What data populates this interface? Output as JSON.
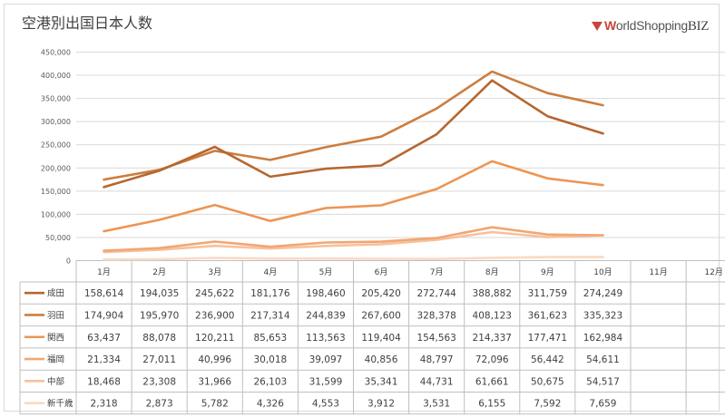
{
  "title": "空港別出国日本人数",
  "logo": {
    "w": "W",
    "mid": "orldShopping",
    "biz": "BIZ"
  },
  "chart_data": {
    "type": "line",
    "title": "空港別出国日本人数",
    "categories": [
      "1月",
      "2月",
      "3月",
      "4月",
      "5月",
      "6月",
      "7月",
      "8月",
      "9月",
      "10月",
      "11月",
      "12月"
    ],
    "ylim": [
      0,
      450000
    ],
    "yticks": [
      "0",
      "50,000",
      "100,000",
      "150,000",
      "200,000",
      "250,000",
      "300,000",
      "350,000",
      "400,000",
      "450,000"
    ],
    "grid": true,
    "legend": "data-table",
    "series": [
      {
        "name": "成田",
        "color": "#b5672f",
        "values": [
          158614,
          194035,
          245622,
          181176,
          198460,
          205420,
          272744,
          388882,
          311759,
          274249,
          null,
          null
        ],
        "labels": [
          "158,614",
          "194,035",
          "245,622",
          "181,176",
          "198,460",
          "205,420",
          "272,744",
          "388,882",
          "311,759",
          "274,249",
          "",
          ""
        ]
      },
      {
        "name": "羽田",
        "color": "#cc7d3f",
        "values": [
          174904,
          195970,
          236900,
          217314,
          244839,
          267600,
          328378,
          408123,
          361623,
          335323,
          null,
          null
        ],
        "labels": [
          "174,904",
          "195,970",
          "236,900",
          "217,314",
          "244,839",
          "267,600",
          "328,378",
          "408,123",
          "361,623",
          "335,323",
          "",
          ""
        ]
      },
      {
        "name": "関西",
        "color": "#ec9554",
        "values": [
          63437,
          88078,
          120211,
          85653,
          113563,
          119404,
          154563,
          214337,
          177471,
          162984,
          null,
          null
        ],
        "labels": [
          "63,437",
          "88,078",
          "120,211",
          "85,653",
          "113,563",
          "119,404",
          "154,563",
          "214,337",
          "177,471",
          "162,984",
          "",
          ""
        ]
      },
      {
        "name": "福岡",
        "color": "#f2a672",
        "values": [
          21334,
          27011,
          40996,
          30018,
          39097,
          40856,
          48797,
          72096,
          56442,
          54611,
          null,
          null
        ],
        "labels": [
          "21,334",
          "27,011",
          "40,996",
          "30,018",
          "39,097",
          "40,856",
          "48,797",
          "72,096",
          "56,442",
          "54,611",
          "",
          ""
        ]
      },
      {
        "name": "中部",
        "color": "#f6c19e",
        "values": [
          18468,
          23308,
          31966,
          26103,
          31599,
          35341,
          44731,
          61661,
          50675,
          54517,
          null,
          null
        ],
        "labels": [
          "18,468",
          "23,308",
          "31,966",
          "26,103",
          "31,599",
          "35,341",
          "44,731",
          "61,661",
          "50,675",
          "54,517",
          "",
          ""
        ]
      },
      {
        "name": "新千歳",
        "color": "#fad9c3",
        "values": [
          2318,
          2873,
          5782,
          4326,
          4553,
          3912,
          3531,
          6155,
          7592,
          7659,
          null,
          null
        ],
        "labels": [
          "2,318",
          "2,873",
          "5,782",
          "4,326",
          "4,553",
          "3,912",
          "3,531",
          "6,155",
          "7,592",
          "7,659",
          "",
          ""
        ]
      }
    ]
  }
}
